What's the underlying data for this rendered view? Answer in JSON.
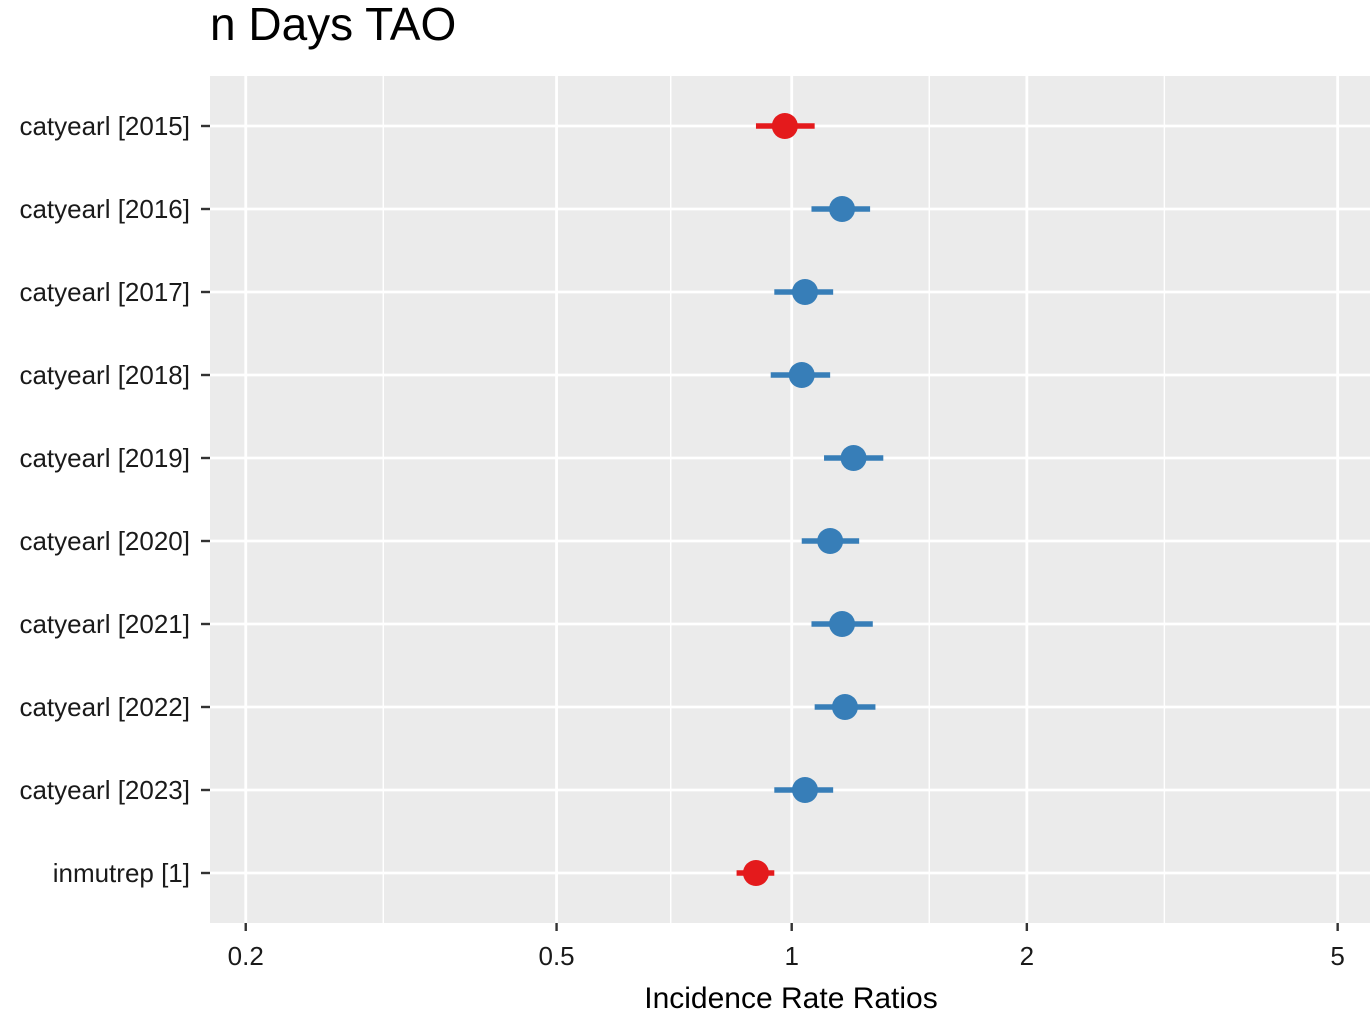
{
  "chart_data": {
    "type": "scatter",
    "subtype": "forest-plot",
    "title": "n Days TAO",
    "xlabel": "Incidence Rate Ratios",
    "ylabel": "",
    "x_scale": "log",
    "xlim": [
      0.18,
      5.5
    ],
    "x_ticks": [
      {
        "value": 0.2,
        "label": "0.2"
      },
      {
        "value": 0.5,
        "label": "0.5"
      },
      {
        "value": 1,
        "label": "1"
      },
      {
        "value": 2,
        "label": "2"
      },
      {
        "value": 5,
        "label": "5"
      }
    ],
    "x_minor_gridlines": [
      0.3,
      0.7,
      1.5,
      3,
      5.5
    ],
    "grid": true,
    "legend": "none",
    "colors": {
      "positive": "#377eb8",
      "negative": "#e41a1c",
      "panel": "#ebebeb",
      "grid": "#ffffff"
    },
    "terms": [
      {
        "label": "catyearl [2015]",
        "estimate": 0.98,
        "ci_low": 0.9,
        "ci_high": 1.07,
        "direction": "negative"
      },
      {
        "label": "catyearl [2016]",
        "estimate": 1.16,
        "ci_low": 1.06,
        "ci_high": 1.26,
        "direction": "positive"
      },
      {
        "label": "catyearl [2017]",
        "estimate": 1.04,
        "ci_low": 0.95,
        "ci_high": 1.13,
        "direction": "positive"
      },
      {
        "label": "catyearl [2018]",
        "estimate": 1.03,
        "ci_low": 0.94,
        "ci_high": 1.12,
        "direction": "positive"
      },
      {
        "label": "catyearl [2019]",
        "estimate": 1.2,
        "ci_low": 1.1,
        "ci_high": 1.31,
        "direction": "positive"
      },
      {
        "label": "catyearl [2020]",
        "estimate": 1.12,
        "ci_low": 1.03,
        "ci_high": 1.22,
        "direction": "positive"
      },
      {
        "label": "catyearl [2021]",
        "estimate": 1.16,
        "ci_low": 1.06,
        "ci_high": 1.27,
        "direction": "positive"
      },
      {
        "label": "catyearl [2022]",
        "estimate": 1.17,
        "ci_low": 1.07,
        "ci_high": 1.28,
        "direction": "positive"
      },
      {
        "label": "catyearl [2023]",
        "estimate": 1.04,
        "ci_low": 0.95,
        "ci_high": 1.13,
        "direction": "positive"
      },
      {
        "label": "inmutrep [1]",
        "estimate": 0.9,
        "ci_low": 0.85,
        "ci_high": 0.95,
        "direction": "negative"
      }
    ]
  }
}
